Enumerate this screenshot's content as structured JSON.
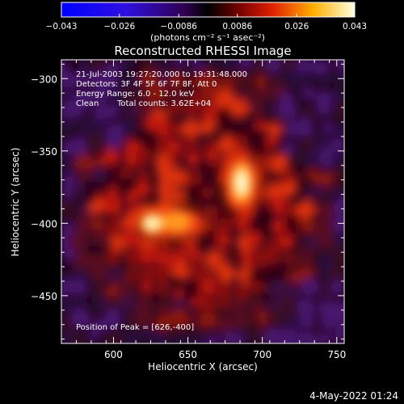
{
  "chart_data": {
    "type": "heatmap",
    "title": "Reconstructed RHESSI Image",
    "xlabel": "Heliocentric X (arcsec)",
    "ylabel": "Heliocentric Y (arcsec)",
    "xlim": [
      565,
      755
    ],
    "ylim": [
      -483,
      -287
    ],
    "x_ticks": [
      600,
      650,
      700,
      750
    ],
    "y_ticks": [
      -300,
      -350,
      -400,
      -450
    ],
    "colorbar": {
      "min": -0.043,
      "max": 0.043,
      "tick_values": [
        -0.043,
        -0.026,
        -0.0086,
        0.0086,
        0.026,
        0.043
      ],
      "tick_labels": [
        "-0.043",
        "-0.026",
        "-0.0086",
        "0.0086",
        "0.026",
        "0.043"
      ],
      "unit_label": "(photons cm⁻² s⁻¹ asec⁻²)",
      "colormap": "rhessi (blue-purple-black-red-yellow-white)"
    },
    "annotations": {
      "time_range": "21-Jul-2003 19:27:20.000 to 19:31:48.000",
      "detectors": "Detectors: 3F 4F 5F 6F 7F 8F, Att 0",
      "energy": "Energy Range: 6.0 - 12.0 keV",
      "method": "Clean",
      "counts": "Total counts: 3.62E+04",
      "peak": "Position of Peak = [626,-400]"
    },
    "sources": [
      {
        "x": 626,
        "y": -400,
        "relative_intensity": 1.0
      },
      {
        "x": 686,
        "y": -372,
        "relative_intensity": 0.95
      }
    ],
    "grid": false
  },
  "footer": {
    "date": "4-May-2022 01:24"
  }
}
